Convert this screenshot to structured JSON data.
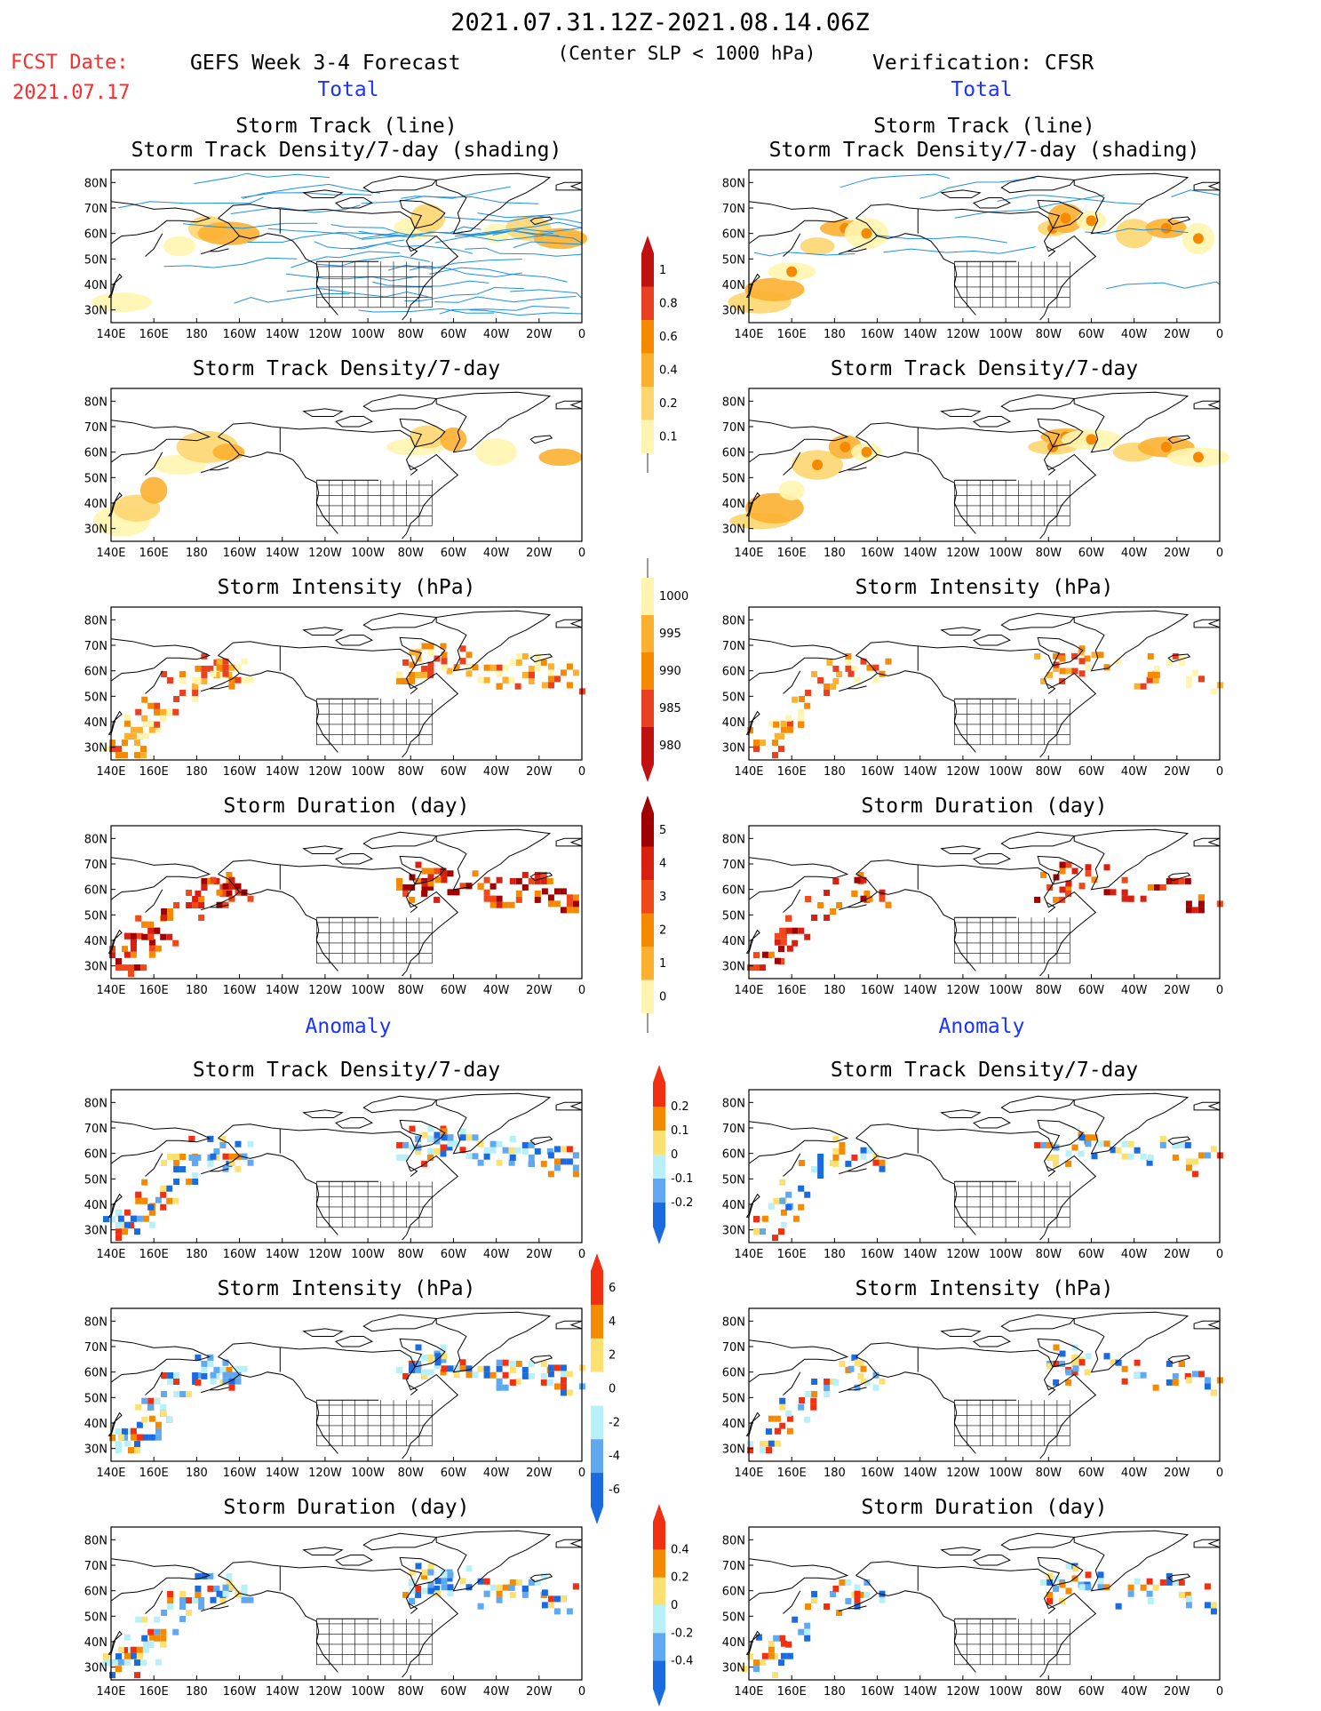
{
  "header": {
    "period": "2021.07.31.12Z-2021.08.14.06Z",
    "criterion": "(Center SLP < 1000 hPa)",
    "fcst_label": "FCST Date:",
    "fcst_date": "2021.07.17",
    "model_title": "GEFS Week 3-4 Forecast",
    "verif_title": "Verification: CFSR",
    "total_left": "Total",
    "total_right": "Total",
    "anomaly_left": "Anomaly",
    "anomaly_right": "Anomaly"
  },
  "axes": {
    "lon_ticks": [
      "140E",
      "160E",
      "180",
      "160W",
      "140W",
      "120W",
      "100W",
      "80W",
      "60W",
      "40W",
      "20W",
      "0"
    ],
    "lat_ticks": [
      "80N",
      "70N",
      "60N",
      "50N",
      "40N",
      "30N"
    ],
    "lon_range": [
      140,
      360
    ],
    "lat_range": [
      25,
      85
    ]
  },
  "panels": {
    "track": {
      "t1": "Storm Track (line)",
      "t2": "Storm Track Density/7-day (shading)"
    },
    "density": "Storm Track Density/7-day",
    "intensity": "Storm Intensity (hPa)",
    "duration": "Storm Duration (day)"
  },
  "colorbars": {
    "density": {
      "labels": [
        "1",
        "0.8",
        "0.6",
        "0.4",
        "0.2",
        "0.1"
      ],
      "colors": [
        "#c01010",
        "#e84020",
        "#f58a00",
        "#fcb030",
        "#fdd670",
        "#fff5b0"
      ]
    },
    "intensity": {
      "labels": [
        "1000",
        "995",
        "990",
        "985",
        "980"
      ],
      "colors": [
        "#fff5b0",
        "#fcb030",
        "#f58a00",
        "#e84020",
        "#c01010"
      ]
    },
    "duration": {
      "labels": [
        "5",
        "4",
        "3",
        "2",
        "1",
        "0"
      ],
      "colors": [
        "#a00000",
        "#d82010",
        "#f04818",
        "#f58a00",
        "#fcb030",
        "#fff5b0"
      ]
    },
    "anom_density": {
      "labels": [
        "0.2",
        "0.1",
        "0",
        "-0.1",
        "-0.2"
      ],
      "colors": [
        "#f03010",
        "#f58a00",
        "#fce070",
        "#b8f0fa",
        "#60a8f0",
        "#1a6ae0"
      ]
    },
    "anom_intensity": {
      "labels": [
        "6",
        "4",
        "2",
        "0",
        "-2",
        "-4",
        "-6"
      ],
      "colors": [
        "#f03010",
        "#f58a00",
        "#fce070",
        "#ffffff",
        "#b8f0fa",
        "#60a8f0",
        "#1a6ae0"
      ]
    },
    "anom_duration": {
      "labels": [
        "0.4",
        "0.2",
        "0",
        "-0.2",
        "-0.4"
      ],
      "colors": [
        "#f03010",
        "#f58a00",
        "#fce070",
        "#b8f0fa",
        "#60a8f0",
        "#1a6ae0"
      ]
    }
  }
}
